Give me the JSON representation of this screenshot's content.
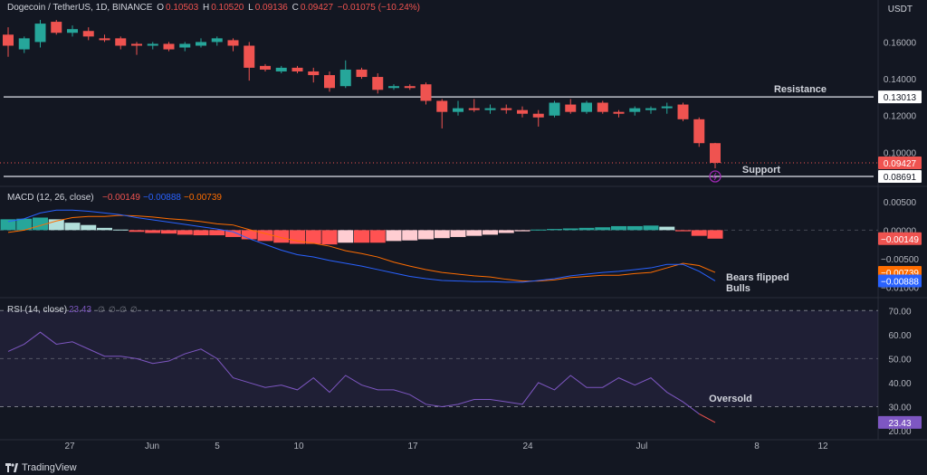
{
  "header": {
    "symbol": "Dogecoin / TetherUS, 1D, BINANCE",
    "o_label": "O",
    "o_value": "0.10503",
    "h_label": "H",
    "h_value": "0.10520",
    "l_label": "L",
    "l_value": "0.09136",
    "c_label": "C",
    "c_value": "0.09427",
    "change": "−0.01075 (−10.24%)"
  },
  "currency_button": "USDT",
  "brand": "TradingView",
  "colors": {
    "bg": "#131722",
    "up": "#26a69a",
    "down": "#ef5350",
    "macd_line": "#2962ff",
    "signal_line": "#ff6d00",
    "hist_up_strong": "#26a69a",
    "hist_up_weak": "#b2dfdb",
    "hist_down_strong": "#ff5252",
    "hist_down_weak": "#ffcdd2",
    "rsi_line": "#7e57c2",
    "grid": "#1e222d",
    "text": "#d1d4dc"
  },
  "chart_data": [
    {
      "type": "candlestick",
      "title": "Dogecoin / TetherUS, 1D, BINANCE",
      "price_ticks": [
        "0.16000",
        "0.14000",
        "0.12000",
        "0.10000"
      ],
      "ylim": [
        0.082,
        0.173
      ],
      "x_tick_labels": [
        "27",
        "Jun",
        "5",
        "10",
        "17",
        "24",
        "Jul",
        "8",
        "12"
      ],
      "horizontal_lines": [
        {
          "name": "Resistance",
          "price": 0.13013,
          "label": "0.13013"
        },
        {
          "name": "Support",
          "price": 0.08691,
          "label": "0.08691"
        }
      ],
      "last_price_label": "0.09427",
      "annotations": [
        "Resistance",
        "Support"
      ],
      "candles": [
        {
          "o": 0.164,
          "h": 0.168,
          "l": 0.152,
          "c": 0.158
        },
        {
          "o": 0.156,
          "h": 0.163,
          "l": 0.154,
          "c": 0.162
        },
        {
          "o": 0.16,
          "h": 0.172,
          "l": 0.157,
          "c": 0.17
        },
        {
          "o": 0.171,
          "h": 0.172,
          "l": 0.164,
          "c": 0.165
        },
        {
          "o": 0.165,
          "h": 0.169,
          "l": 0.163,
          "c": 0.167
        },
        {
          "o": 0.166,
          "h": 0.168,
          "l": 0.161,
          "c": 0.163
        },
        {
          "o": 0.162,
          "h": 0.164,
          "l": 0.16,
          "c": 0.161
        },
        {
          "o": 0.162,
          "h": 0.163,
          "l": 0.156,
          "c": 0.158
        },
        {
          "o": 0.159,
          "h": 0.16,
          "l": 0.153,
          "c": 0.158
        },
        {
          "o": 0.158,
          "h": 0.16,
          "l": 0.156,
          "c": 0.159
        },
        {
          "o": 0.159,
          "h": 0.16,
          "l": 0.155,
          "c": 0.156
        },
        {
          "o": 0.157,
          "h": 0.16,
          "l": 0.155,
          "c": 0.159
        },
        {
          "o": 0.158,
          "h": 0.162,
          "l": 0.157,
          "c": 0.16
        },
        {
          "o": 0.16,
          "h": 0.163,
          "l": 0.158,
          "c": 0.162
        },
        {
          "o": 0.161,
          "h": 0.162,
          "l": 0.155,
          "c": 0.158
        },
        {
          "o": 0.158,
          "h": 0.16,
          "l": 0.139,
          "c": 0.146
        },
        {
          "o": 0.147,
          "h": 0.148,
          "l": 0.144,
          "c": 0.145
        },
        {
          "o": 0.144,
          "h": 0.147,
          "l": 0.143,
          "c": 0.146
        },
        {
          "o": 0.146,
          "h": 0.147,
          "l": 0.143,
          "c": 0.144
        },
        {
          "o": 0.144,
          "h": 0.146,
          "l": 0.138,
          "c": 0.142
        },
        {
          "o": 0.142,
          "h": 0.144,
          "l": 0.133,
          "c": 0.135
        },
        {
          "o": 0.136,
          "h": 0.15,
          "l": 0.135,
          "c": 0.145
        },
        {
          "o": 0.145,
          "h": 0.146,
          "l": 0.14,
          "c": 0.141
        },
        {
          "o": 0.141,
          "h": 0.143,
          "l": 0.132,
          "c": 0.134
        },
        {
          "o": 0.135,
          "h": 0.137,
          "l": 0.134,
          "c": 0.136
        },
        {
          "o": 0.136,
          "h": 0.137,
          "l": 0.134,
          "c": 0.135
        },
        {
          "o": 0.137,
          "h": 0.138,
          "l": 0.126,
          "c": 0.128
        },
        {
          "o": 0.128,
          "h": 0.129,
          "l": 0.113,
          "c": 0.122
        },
        {
          "o": 0.122,
          "h": 0.128,
          "l": 0.12,
          "c": 0.124
        },
        {
          "o": 0.124,
          "h": 0.129,
          "l": 0.122,
          "c": 0.123
        },
        {
          "o": 0.123,
          "h": 0.126,
          "l": 0.121,
          "c": 0.124
        },
        {
          "o": 0.124,
          "h": 0.126,
          "l": 0.121,
          "c": 0.123
        },
        {
          "o": 0.123,
          "h": 0.125,
          "l": 0.119,
          "c": 0.121
        },
        {
          "o": 0.121,
          "h": 0.123,
          "l": 0.114,
          "c": 0.119
        },
        {
          "o": 0.12,
          "h": 0.128,
          "l": 0.119,
          "c": 0.127
        },
        {
          "o": 0.126,
          "h": 0.129,
          "l": 0.121,
          "c": 0.122
        },
        {
          "o": 0.122,
          "h": 0.128,
          "l": 0.121,
          "c": 0.127
        },
        {
          "o": 0.127,
          "h": 0.128,
          "l": 0.121,
          "c": 0.122
        },
        {
          "o": 0.122,
          "h": 0.123,
          "l": 0.119,
          "c": 0.121
        },
        {
          "o": 0.122,
          "h": 0.125,
          "l": 0.12,
          "c": 0.124
        },
        {
          "o": 0.123,
          "h": 0.125,
          "l": 0.121,
          "c": 0.124
        },
        {
          "o": 0.124,
          "h": 0.127,
          "l": 0.121,
          "c": 0.125
        },
        {
          "o": 0.126,
          "h": 0.127,
          "l": 0.117,
          "c": 0.118
        },
        {
          "o": 0.118,
          "h": 0.119,
          "l": 0.103,
          "c": 0.105
        },
        {
          "o": 0.105,
          "h": 0.1052,
          "l": 0.09136,
          "c": 0.09427
        }
      ]
    },
    {
      "type": "line",
      "title": "MACD (12, 26, close)",
      "legend_values": [
        "−0.00149",
        "−0.00888",
        "−0.00739"
      ],
      "y_ticks": [
        "0.00500",
        "0.00000",
        "−0.00500",
        "−0.01000"
      ],
      "ylim": [
        -0.0115,
        0.0075
      ],
      "series": [
        {
          "name": "Histogram",
          "type": "bar",
          "values": [
            0.0019,
            0.002,
            0.0022,
            0.0019,
            0.0013,
            0.0009,
            0.0004,
            0.0001,
            -0.0003,
            -0.0005,
            -0.0006,
            -0.0008,
            -0.0009,
            -0.0009,
            -0.0012,
            -0.0016,
            -0.0019,
            -0.0022,
            -0.0024,
            -0.0024,
            -0.0025,
            -0.0022,
            -0.0022,
            -0.0022,
            -0.0019,
            -0.0018,
            -0.0016,
            -0.0014,
            -0.0012,
            -0.001,
            -0.0008,
            -0.0005,
            -0.0002,
            0.0001,
            0.0002,
            0.0003,
            0.0004,
            0.0005,
            0.0007,
            0.0007,
            0.0008,
            0.0006,
            -0.0002,
            -0.001,
            -0.00149
          ]
        },
        {
          "name": "MACD",
          "values": [
            0.0015,
            0.002,
            0.003,
            0.0035,
            0.0035,
            0.0033,
            0.003,
            0.0027,
            0.0022,
            0.0018,
            0.0014,
            0.001,
            0.0006,
            0.0002,
            -0.0003,
            -0.0015,
            -0.0025,
            -0.0035,
            -0.0043,
            -0.0047,
            -0.0053,
            -0.0058,
            -0.0063,
            -0.0069,
            -0.0075,
            -0.0081,
            -0.0085,
            -0.0088,
            -0.0089,
            -0.009,
            -0.009,
            -0.0091,
            -0.0091,
            -0.0088,
            -0.0085,
            -0.008,
            -0.0077,
            -0.0074,
            -0.0072,
            -0.0069,
            -0.0066,
            -0.006,
            -0.006,
            -0.0072,
            -0.00888
          ]
        },
        {
          "name": "Signal",
          "values": [
            -0.0004,
            0.0,
            0.0008,
            0.0016,
            0.0022,
            0.0024,
            0.0024,
            0.0026,
            0.0025,
            0.0023,
            0.002,
            0.0018,
            0.0015,
            0.0011,
            0.0009,
            0.0001,
            -0.0006,
            -0.0013,
            -0.0019,
            -0.0023,
            -0.0028,
            -0.0036,
            -0.0041,
            -0.0047,
            -0.0056,
            -0.0063,
            -0.0069,
            -0.0074,
            -0.0077,
            -0.008,
            -0.0082,
            -0.0086,
            -0.0089,
            -0.0089,
            -0.0087,
            -0.0083,
            -0.0081,
            -0.0079,
            -0.0079,
            -0.0076,
            -0.0074,
            -0.0066,
            -0.0058,
            -0.0062,
            -0.00739
          ]
        }
      ],
      "value_labels": [
        "−0.00149",
        "−0.00739",
        "−0.00888"
      ],
      "annotations": [
        "Bears flipped",
        "Bulls"
      ]
    },
    {
      "type": "line",
      "title": "RSI (14, close)",
      "legend_value": "23.43",
      "legend_symbols": [
        "∅",
        "∅",
        "∅",
        "∅"
      ],
      "y_ticks": [
        "70.00",
        "60.00",
        "50.00",
        "40.00",
        "30.00",
        "20.00"
      ],
      "ylim": [
        17,
        75
      ],
      "band": [
        30,
        70
      ],
      "middle": 50,
      "series": [
        {
          "name": "RSI",
          "values": [
            53,
            56,
            61,
            56,
            57,
            54,
            51,
            51,
            50,
            48,
            49,
            52,
            54,
            50,
            42,
            40,
            38,
            39,
            37,
            42,
            36,
            43,
            39,
            37,
            37,
            35,
            31,
            30,
            31,
            33,
            33,
            32,
            31,
            40,
            37,
            43,
            38,
            38,
            42,
            39,
            42,
            36,
            32,
            27,
            23.43
          ]
        }
      ],
      "value_label": "23.43",
      "annotations": [
        "Oversold"
      ]
    }
  ]
}
